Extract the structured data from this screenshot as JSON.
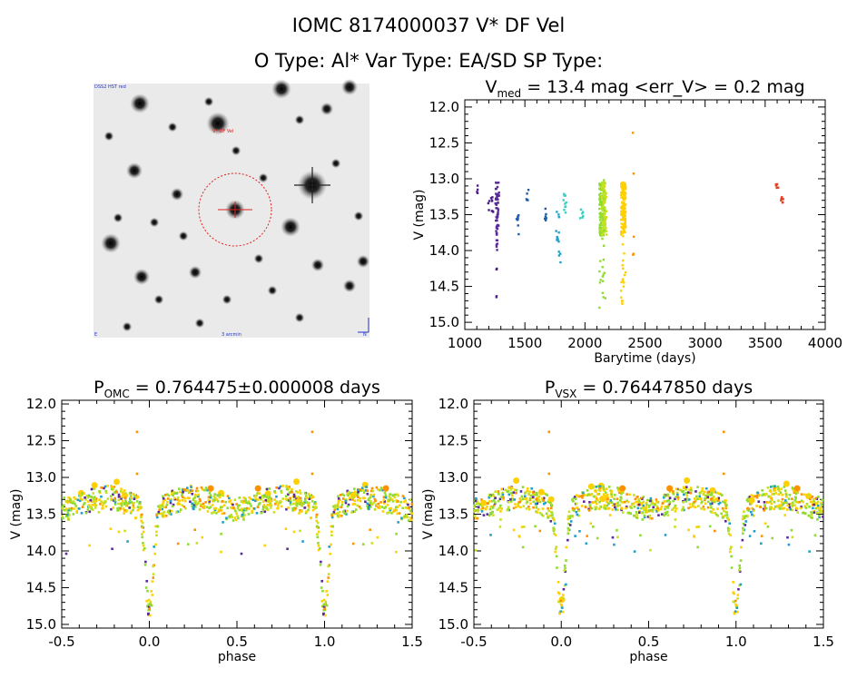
{
  "header": {
    "title": "IOMC 8174000037    V* DF Vel",
    "subtitle": "O Type: Al*  Var Type: EA/SD  SP Type:"
  },
  "image_panel": {
    "top_left_label": "DSS2 HST red",
    "target_label": "V* DF Vel",
    "bottom_center_label": "3 arcmin",
    "bottom_left_label": "E",
    "bottom_right_label": "N",
    "colors": {
      "circle": "#dd2222",
      "label": "#2233cc",
      "target_label": "#dd2222"
    }
  },
  "series_colors": [
    "#4b1d8a",
    "#5a2a9a",
    "#1f5fa8",
    "#20a0c8",
    "#35d0c0",
    "#8fdc30",
    "#c8e020",
    "#ffd000",
    "#ff9000",
    "#e04020"
  ],
  "chart_data": [
    {
      "type": "scatter",
      "name": "lightcurve",
      "title_text": "V",
      "title_sub": "med",
      "title_rest": " = 13.4 mag <err_V> = 0.2 mag",
      "xlabel": "Barytime (days)",
      "ylabel": "V (mag)",
      "xlim": [
        1000,
        4000
      ],
      "ylim": [
        15.1,
        11.9
      ],
      "y_inverted": true,
      "xticks": [
        "1000",
        "1500",
        "2000",
        "2500",
        "3000",
        "3500",
        "4000"
      ],
      "xtick_values": [
        1000,
        1500,
        2000,
        2500,
        3000,
        3500,
        4000
      ],
      "yticks": [
        "12.0",
        "12.5",
        "13.0",
        "13.5",
        "14.0",
        "14.5",
        "15.0"
      ],
      "ytick_values": [
        12.0,
        12.5,
        13.0,
        13.5,
        14.0,
        14.5,
        15.0
      ],
      "groups": [
        {
          "x_range": [
            1100,
            1110
          ],
          "y_range": [
            13.05,
            13.2
          ],
          "color_index": 0,
          "n": 4
        },
        {
          "x_range": [
            1190,
            1240
          ],
          "y_range": [
            13.2,
            13.5
          ],
          "color_index": 0,
          "n": 10
        },
        {
          "x_range": [
            1255,
            1285
          ],
          "y_range": [
            13.05,
            13.7
          ],
          "color_index": 1,
          "n": 50
        },
        {
          "x_range": [
            1260,
            1275
          ],
          "y_range": [
            13.7,
            14.0
          ],
          "color_index": 1,
          "n": 6
        },
        {
          "x_range": [
            1262,
            1268
          ],
          "y_range": [
            14.25,
            14.35
          ],
          "color_index": 0,
          "n": 2
        },
        {
          "x_range": [
            1262,
            1268
          ],
          "y_range": [
            14.6,
            14.7
          ],
          "color_index": 0,
          "n": 2
        },
        {
          "x_range": [
            1430,
            1450
          ],
          "y_range": [
            13.4,
            13.8
          ],
          "color_index": 2,
          "n": 8
        },
        {
          "x_range": [
            1510,
            1530
          ],
          "y_range": [
            13.15,
            13.3
          ],
          "color_index": 2,
          "n": 6
        },
        {
          "x_range": [
            1660,
            1680
          ],
          "y_range": [
            13.4,
            13.6
          ],
          "color_index": 2,
          "n": 6
        },
        {
          "x_range": [
            1760,
            1790
          ],
          "y_range": [
            13.4,
            13.9
          ],
          "color_index": 3,
          "n": 10
        },
        {
          "x_range": [
            1780,
            1800
          ],
          "y_range": [
            14.0,
            14.2
          ],
          "color_index": 3,
          "n": 4
        },
        {
          "x_range": [
            1820,
            1850
          ],
          "y_range": [
            13.2,
            13.5
          ],
          "color_index": 4,
          "n": 10
        },
        {
          "x_range": [
            1960,
            1990
          ],
          "y_range": [
            13.4,
            13.55
          ],
          "color_index": 4,
          "n": 6
        },
        {
          "x_range": [
            2120,
            2170
          ],
          "y_range": [
            13.0,
            14.8
          ],
          "color_index": 5,
          "n": 160
        },
        {
          "x_range": [
            2140,
            2180
          ],
          "y_range": [
            13.0,
            13.8
          ],
          "color_index": 6,
          "n": 60
        },
        {
          "x_range": [
            2300,
            2340
          ],
          "y_range": [
            13.0,
            14.8
          ],
          "color_index": 7,
          "n": 150
        },
        {
          "x_range": [
            2390,
            2400
          ],
          "y_range": [
            12.35,
            12.4
          ],
          "color_index": 8,
          "n": 1
        },
        {
          "x_range": [
            2395,
            2405
          ],
          "y_range": [
            12.9,
            12.95
          ],
          "color_index": 8,
          "n": 1
        },
        {
          "x_range": [
            2395,
            2410
          ],
          "y_range": [
            13.8,
            14.1
          ],
          "color_index": 8,
          "n": 3
        },
        {
          "x_range": [
            3590,
            3610
          ],
          "y_range": [
            13.05,
            13.15
          ],
          "color_index": 9,
          "n": 6
        },
        {
          "x_range": [
            3630,
            3650
          ],
          "y_range": [
            13.25,
            13.35
          ],
          "color_index": 9,
          "n": 6
        }
      ]
    },
    {
      "type": "scatter",
      "name": "phase_omc",
      "title_text": "P",
      "title_sub": "OMC",
      "title_rest": " = 0.764475±0.000008 days",
      "xlabel": "phase",
      "ylabel": "V (mag)",
      "xlim": [
        -0.5,
        1.5
      ],
      "ylim": [
        15.05,
        11.95
      ],
      "y_inverted": true,
      "xticks": [
        "-0.5",
        "0.0",
        "0.5",
        "1.0",
        "1.5"
      ],
      "xtick_values": [
        -0.5,
        0.0,
        0.5,
        1.0,
        1.5
      ],
      "yticks": [
        "12.0",
        "12.5",
        "13.0",
        "13.5",
        "14.0",
        "14.5",
        "15.0"
      ],
      "ytick_values": [
        12.0,
        12.5,
        13.0,
        13.5,
        14.0,
        14.5,
        15.0
      ],
      "eclipse_center": 0.0,
      "eclipse_depth_mag": 14.8,
      "baseline_mag": 13.4,
      "outliers": [
        {
          "x": -0.07,
          "y": 12.38,
          "color_index": 8
        },
        {
          "x": 0.93,
          "y": 12.38,
          "color_index": 8
        },
        {
          "x": -0.07,
          "y": 12.95,
          "color_index": 8
        },
        {
          "x": 0.93,
          "y": 12.95,
          "color_index": 8
        }
      ]
    },
    {
      "type": "scatter",
      "name": "phase_vsx",
      "title_text": "P",
      "title_sub": "VSX",
      "title_rest": " = 0.76447850 days",
      "xlabel": "phase",
      "ylabel": "V (mag)",
      "xlim": [
        -0.5,
        1.5
      ],
      "ylim": [
        15.05,
        11.95
      ],
      "y_inverted": true,
      "xticks": [
        "-0.5",
        "0.0",
        "0.5",
        "1.0",
        "1.5"
      ],
      "xtick_values": [
        -0.5,
        0.0,
        0.5,
        1.0,
        1.5
      ],
      "yticks": [
        "12.0",
        "12.5",
        "13.0",
        "13.5",
        "14.0",
        "14.5",
        "15.0"
      ],
      "ytick_values": [
        12.0,
        12.5,
        13.0,
        13.5,
        14.0,
        14.5,
        15.0
      ],
      "eclipse_center": 0.0,
      "eclipse_depth_mag": 14.8,
      "baseline_mag": 13.4,
      "outliers": [
        {
          "x": -0.07,
          "y": 12.38,
          "color_index": 8
        },
        {
          "x": 0.93,
          "y": 12.38,
          "color_index": 8
        },
        {
          "x": -0.07,
          "y": 12.95,
          "color_index": 8
        },
        {
          "x": 0.93,
          "y": 12.95,
          "color_index": 8
        }
      ]
    }
  ]
}
